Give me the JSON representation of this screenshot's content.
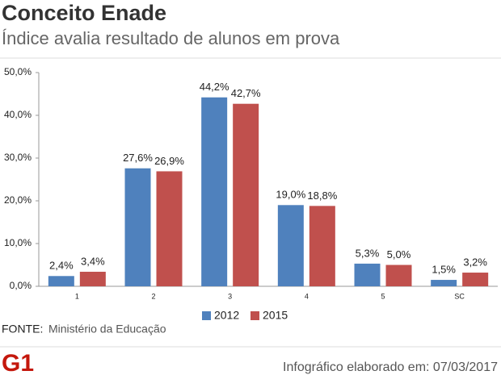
{
  "chart_data": {
    "type": "bar",
    "title": "Conceito Enade",
    "subtitle": "Índice avalia resultado de alunos em prova",
    "categories": [
      "1",
      "2",
      "3",
      "4",
      "5",
      "SC"
    ],
    "series": [
      {
        "name": "2012",
        "color": "#4f81bd",
        "values": [
          2.4,
          27.6,
          44.2,
          19.0,
          5.3,
          1.5
        ],
        "value_labels": [
          "2,4%",
          "27,6%",
          "44,2%",
          "19,0%",
          "5,3%",
          "1,5%"
        ]
      },
      {
        "name": "2015",
        "color": "#c0504d",
        "values": [
          3.4,
          26.9,
          42.7,
          18.8,
          5.0,
          3.2
        ],
        "value_labels": [
          "3,4%",
          "26,9%",
          "42,7%",
          "18,8%",
          "5,0%",
          "3,2%"
        ]
      }
    ],
    "ylim": [
      0,
      50
    ],
    "yticks": [
      {
        "value": 0,
        "label": "0,0%"
      },
      {
        "value": 10,
        "label": "10,0%"
      },
      {
        "value": 20,
        "label": "20,0%"
      },
      {
        "value": 30,
        "label": "30,0%"
      },
      {
        "value": 40,
        "label": "40,0%"
      },
      {
        "value": 50,
        "label": "50,0%"
      }
    ],
    "grid": false,
    "source_label": "FONTE:",
    "source": "Ministério da Educação",
    "logo": "G1",
    "credit": "Infográfico elaborado em: 07/03/2017"
  }
}
